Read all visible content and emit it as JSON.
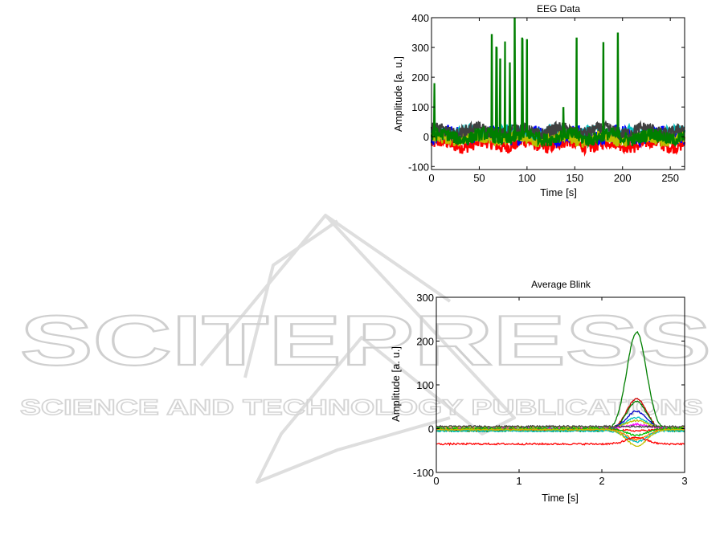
{
  "watermark": {
    "word": "SCITEPRESS",
    "subtitle": "SCIENCE AND TECHNOLOGY PUBLICATIONS"
  },
  "chart_data": [
    {
      "type": "line",
      "title": "EEG Data",
      "xlabel": "Time [s]",
      "ylabel": "Amplitude [a. u.]",
      "xlim": [
        0,
        265
      ],
      "ylim": [
        -110,
        400
      ],
      "xticks": [
        0,
        50,
        100,
        150,
        200,
        250
      ],
      "yticks": [
        -100,
        0,
        100,
        200,
        300,
        400
      ],
      "grid": false,
      "legend": "none",
      "series": [
        {
          "color": "#ff0000",
          "baseline": -25,
          "band": 22
        },
        {
          "color": "#0000ff",
          "baseline": 5,
          "band": 25
        },
        {
          "color": "#00bfbf",
          "baseline": 15,
          "band": 18
        },
        {
          "color": "#bfbf00",
          "baseline": -5,
          "band": 20
        },
        {
          "color": "#404040",
          "baseline": 20,
          "band": 20
        },
        {
          "color": "#007f00",
          "baseline": 0,
          "band": 22,
          "spikes": [
            [
              3,
              180
            ],
            [
              63,
              345
            ],
            [
              68,
              300
            ],
            [
              72,
              260
            ],
            [
              77,
              320
            ],
            [
              82,
              250
            ],
            [
              87,
              400
            ],
            [
              95,
              330
            ],
            [
              100,
              325
            ],
            [
              138,
              100
            ],
            [
              152,
              330
            ],
            [
              180,
              315
            ],
            [
              195,
              350
            ]
          ]
        }
      ]
    },
    {
      "type": "line",
      "title": "Average Blink",
      "xlabel": "Time [s]",
      "ylabel": "Amplitude [a. u.]",
      "xlim": [
        0,
        3
      ],
      "ylim": [
        -100,
        300
      ],
      "xticks": [
        0,
        1,
        2,
        3
      ],
      "yticks": [
        -100,
        0,
        100,
        200,
        300
      ],
      "grid": false,
      "legend": "none",
      "blink_center": 2.42,
      "series": [
        {
          "color": "#007f00",
          "baseline": -5,
          "peak": 220
        },
        {
          "color": "#cc0000",
          "baseline": -3,
          "peak": 68
        },
        {
          "color": "#007f00",
          "baseline": -4,
          "peak": 62
        },
        {
          "color": "#0000cc",
          "baseline": 0,
          "peak": 40
        },
        {
          "color": "#00bfbf",
          "baseline": 2,
          "peak": 25
        },
        {
          "color": "#bfbf00",
          "baseline": 3,
          "peak": 18
        },
        {
          "color": "#ff00ff",
          "baseline": 0,
          "peak": 10
        },
        {
          "color": "#404040",
          "baseline": 5,
          "peak": 5
        },
        {
          "color": "#ff0000",
          "baseline": -2,
          "peak": -5
        },
        {
          "color": "#00bf00",
          "baseline": 0,
          "peak": -15
        },
        {
          "color": "#ff7f00",
          "baseline": -3,
          "peak": -25
        },
        {
          "color": "#00bfbf",
          "baseline": -5,
          "peak": -30
        },
        {
          "color": "#bfbf00",
          "baseline": -2,
          "peak": -40
        },
        {
          "color": "#ff0000",
          "baseline": -35,
          "peak": -20
        }
      ]
    }
  ]
}
